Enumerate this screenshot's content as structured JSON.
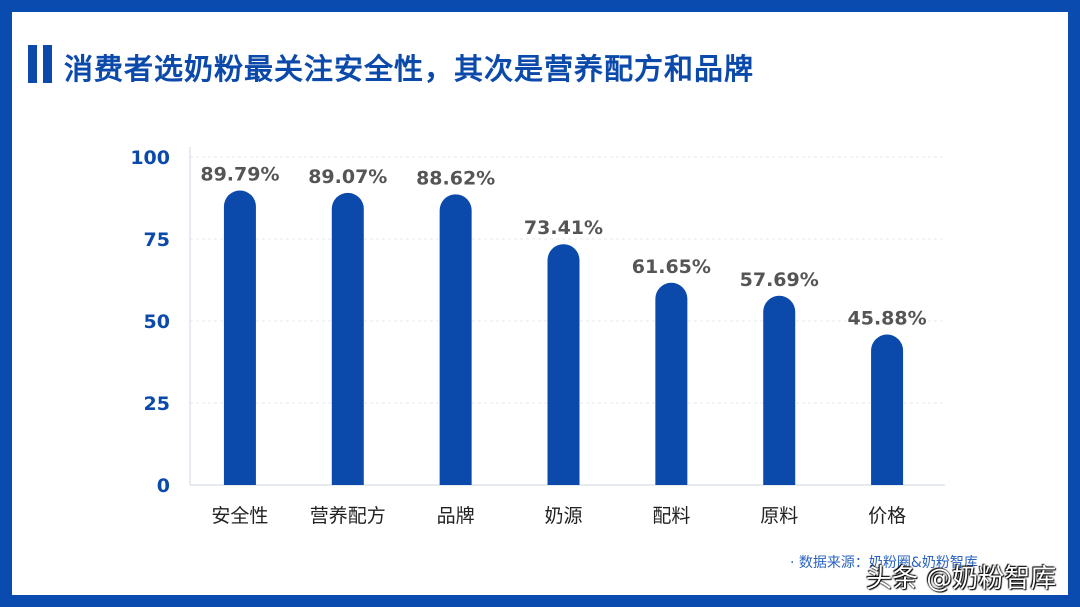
{
  "title": "消费者选奶粉最关注安全性，其次是营养配方和品牌",
  "source": "· 数据来源：奶粉圈&奶粉智库",
  "watermark": "头条 @奶粉智库",
  "colors": {
    "bar": "#0b4aaa",
    "frame": "#0a4bb0",
    "label": "#555555",
    "axis": "#0b4aaa"
  },
  "chart_data": {
    "type": "bar",
    "categories": [
      "安全性",
      "营养配方",
      "品牌",
      "奶源",
      "配料",
      "原料",
      "价格"
    ],
    "values": [
      89.79,
      89.07,
      88.62,
      73.41,
      61.65,
      57.69,
      45.88
    ],
    "data_labels": [
      "89.79%",
      "89.07%",
      "88.62%",
      "73.41%",
      "61.65%",
      "57.69%",
      "45.88%"
    ],
    "yticks": [
      0,
      25,
      50,
      75,
      100
    ],
    "ylim": [
      0,
      100
    ],
    "grid": true,
    "legend": "none"
  }
}
